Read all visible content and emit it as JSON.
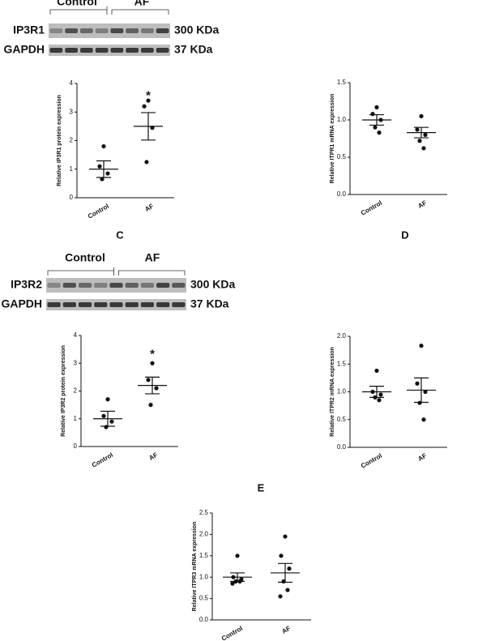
{
  "blots": [
    {
      "groups": [
        "Control",
        "AF"
      ],
      "rows": [
        {
          "protein": "IP3R1",
          "size": "300 KDa"
        },
        {
          "protein": "GAPDH",
          "size": "37 KDa"
        }
      ]
    },
    {
      "groups": [
        "Control",
        "AF"
      ],
      "rows": [
        {
          "protein": "IP3R2",
          "size": "300 KDa"
        },
        {
          "protein": "GAPDH",
          "size": "37 KDa"
        }
      ]
    }
  ],
  "panels": [
    "C",
    "D",
    "E"
  ],
  "chart_data": [
    {
      "type": "dot",
      "ylabel": "Relative IP3R1 protein expression",
      "categories": [
        "Control",
        "AF"
      ],
      "groups": [
        {
          "values": [
            1.8,
            1.1,
            0.85,
            0.65
          ],
          "mean": 1.0,
          "sem": 0.29
        },
        {
          "values": [
            3.4,
            3.2,
            2.45,
            1.25
          ],
          "mean": 2.5,
          "sem": 0.48
        }
      ],
      "ylim": [
        0,
        4
      ],
      "yticks": [
        0,
        1,
        2,
        3,
        4
      ],
      "annotations": [
        {
          "text": "*",
          "category": 1,
          "y": 3.65
        }
      ],
      "color": "#111"
    },
    {
      "type": "dot",
      "ylabel": "Relative ITPR1 mRNA expression",
      "categories": [
        "Control",
        "AF"
      ],
      "groups": [
        {
          "values": [
            1.17,
            1.08,
            1.0,
            0.9,
            0.83
          ],
          "mean": 1.0,
          "sem": 0.07
        },
        {
          "values": [
            1.05,
            0.87,
            0.8,
            0.72,
            0.62
          ],
          "mean": 0.83,
          "sem": 0.07
        }
      ],
      "ylim": [
        0,
        1.5
      ],
      "yticks": [
        {
          "value": 0,
          "label": "0.0"
        },
        {
          "value": 0.5,
          "label": "0.5"
        },
        {
          "value": 1,
          "label": "1.0"
        },
        {
          "value": 1.5,
          "label": "1.5"
        }
      ],
      "annotations": [],
      "color": "#111"
    },
    {
      "type": "dot",
      "ylabel": "Relative IP3R2 protein expression",
      "categories": [
        "Control",
        "AF"
      ],
      "groups": [
        {
          "values": [
            1.7,
            1.1,
            0.9,
            0.7
          ],
          "mean": 1.0,
          "sem": 0.27
        },
        {
          "values": [
            3.0,
            2.4,
            2.1,
            1.5
          ],
          "mean": 2.2,
          "sem": 0.3
        }
      ],
      "ylim": [
        0,
        4
      ],
      "yticks": [
        0,
        1,
        2,
        3,
        4
      ],
      "annotations": [
        {
          "text": "*",
          "category": 1,
          "y": 3.4
        }
      ],
      "color": "#111"
    },
    {
      "type": "dot",
      "ylabel": "Relative ITPR2 mRNA expression",
      "categories": [
        "Control",
        "AF"
      ],
      "groups": [
        {
          "values": [
            1.38,
            1.0,
            0.95,
            0.9,
            0.85
          ],
          "mean": 1.0,
          "sem": 0.1
        },
        {
          "values": [
            1.83,
            1.15,
            1.0,
            0.8,
            0.5
          ],
          "mean": 1.03,
          "sem": 0.22
        }
      ],
      "ylim": [
        0,
        2
      ],
      "yticks": [
        {
          "value": 0,
          "label": "0.0"
        },
        {
          "value": 0.5,
          "label": "0.5"
        },
        {
          "value": 1,
          "label": "1.0"
        },
        {
          "value": 1.5,
          "label": "1.5"
        },
        {
          "value": 2,
          "label": "2.0"
        }
      ],
      "annotations": [],
      "color": "#111"
    },
    {
      "type": "dot",
      "ylabel": "Relative ITPR3 mRNA expression",
      "categories": [
        "Control",
        "AF"
      ],
      "groups": [
        {
          "values": [
            1.5,
            1.0,
            0.95,
            0.9,
            0.9,
            0.85
          ],
          "mean": 1.0,
          "sem": 0.1
        },
        {
          "values": [
            1.95,
            1.5,
            1.2,
            0.9,
            0.7,
            0.55
          ],
          "mean": 1.1,
          "sem": 0.22
        }
      ],
      "ylim": [
        0,
        2.5
      ],
      "yticks": [
        {
          "value": 0,
          "label": "0.0"
        },
        {
          "value": 0.5,
          "label": "0.5"
        },
        {
          "value": 1,
          "label": "1.0"
        },
        {
          "value": 1.5,
          "label": "1.5"
        },
        {
          "value": 2,
          "label": "2.0"
        },
        {
          "value": 2.5,
          "label": "2.5"
        }
      ],
      "annotations": [],
      "color": "#111"
    }
  ]
}
